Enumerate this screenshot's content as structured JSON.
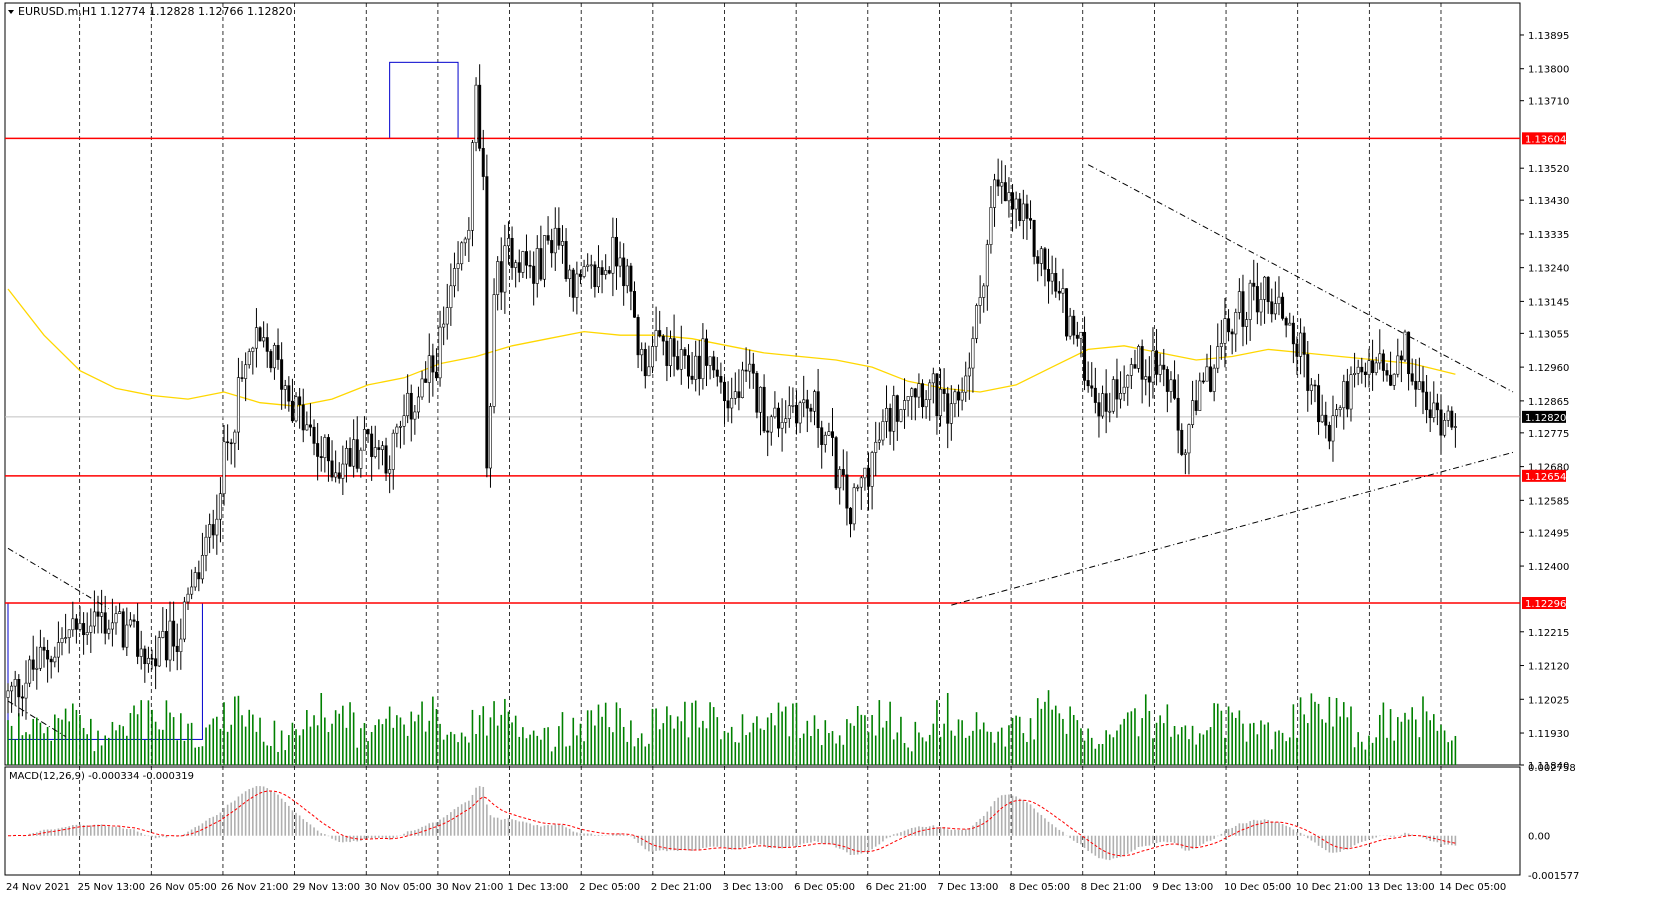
{
  "header": {
    "symbol": "EURUSD.m,H1",
    "ohlc": "1.12774 1.12828 1.12766 1.12820"
  },
  "chart_data": {
    "type": "candlestick",
    "symbol": "EURUSD.m",
    "timeframe": "H1",
    "ohlc_last": {
      "open": 1.12774,
      "high": 1.12828,
      "low": 1.12766,
      "close": 1.1282
    },
    "price_axis": {
      "ylim": [
        1.1184,
        1.13985
      ],
      "ticks": [
        "1.13895",
        "1.13800",
        "1.13710",
        "1.13520",
        "1.13430",
        "1.13335",
        "1.13240",
        "1.13145",
        "1.13055",
        "1.12960",
        "1.12865",
        "1.12775",
        "1.12680",
        "1.12585",
        "1.12495",
        "1.12400",
        "1.12215",
        "1.12120",
        "1.12025",
        "1.11930",
        "1.11840"
      ]
    },
    "time_axis": {
      "labels": [
        "24 Nov 2021",
        "25 Nov 13:00",
        "26 Nov 05:00",
        "26 Nov 21:00",
        "29 Nov 13:00",
        "30 Nov 05:00",
        "30 Nov 21:00",
        "1 Dec 13:00",
        "2 Dec 05:00",
        "2 Dec 21:00",
        "3 Dec 13:00",
        "6 Dec 05:00",
        "6 Dec 21:00",
        "7 Dec 13:00",
        "8 Dec 05:00",
        "8 Dec 21:00",
        "9 Dec 13:00",
        "10 Dec 05:00",
        "10 Dec 21:00",
        "13 Dec 13:00",
        "14 Dec 05:00"
      ]
    },
    "horizontal_levels": [
      {
        "price": 1.13604,
        "label": "1.13604",
        "color": "#ff0000"
      },
      {
        "price": 1.12654,
        "label": "1.12654",
        "color": "#ff0000"
      },
      {
        "price": 1.12296,
        "label": "1.12296",
        "color": "#ff0000"
      }
    ],
    "current_price": {
      "price": 1.1282,
      "label": "1.12820"
    },
    "close_path": [
      [
        0,
        1.1203
      ],
      [
        8,
        1.1212
      ],
      [
        16,
        1.122
      ],
      [
        24,
        1.1226
      ],
      [
        32,
        1.1222
      ],
      [
        40,
        1.1213
      ],
      [
        48,
        1.1222
      ],
      [
        56,
        1.1248
      ],
      [
        62,
        1.128
      ],
      [
        68,
        1.1302
      ],
      [
        74,
        1.1298
      ],
      [
        80,
        1.1284
      ],
      [
        86,
        1.1272
      ],
      [
        92,
        1.1268
      ],
      [
        100,
        1.1276
      ],
      [
        106,
        1.1271
      ],
      [
        112,
        1.1285
      ],
      [
        118,
        1.1295
      ],
      [
        124,
        1.1318
      ],
      [
        128,
        1.1338
      ],
      [
        130,
        1.1372
      ],
      [
        132,
        1.1345
      ],
      [
        133,
        1.1262
      ],
      [
        135,
        1.1318
      ],
      [
        140,
        1.133
      ],
      [
        146,
        1.1322
      ],
      [
        152,
        1.1335
      ],
      [
        158,
        1.1318
      ],
      [
        164,
        1.1322
      ],
      [
        170,
        1.133
      ],
      [
        176,
        1.1298
      ],
      [
        182,
        1.1302
      ],
      [
        188,
        1.1294
      ],
      [
        194,
        1.13
      ],
      [
        200,
        1.1286
      ],
      [
        206,
        1.1292
      ],
      [
        212,
        1.128
      ],
      [
        218,
        1.1286
      ],
      [
        224,
        1.1284
      ],
      [
        228,
        1.1274
      ],
      [
        234,
        1.1254
      ],
      [
        238,
        1.1266
      ],
      [
        244,
        1.128
      ],
      [
        250,
        1.1292
      ],
      [
        256,
        1.129
      ],
      [
        262,
        1.128
      ],
      [
        268,
        1.1302
      ],
      [
        274,
        1.1346
      ],
      [
        280,
        1.134
      ],
      [
        286,
        1.1328
      ],
      [
        292,
        1.1316
      ],
      [
        298,
        1.13
      ],
      [
        304,
        1.1284
      ],
      [
        310,
        1.1295
      ],
      [
        318,
        1.1298
      ],
      [
        322,
        1.1292
      ],
      [
        326,
        1.1272
      ],
      [
        330,
        1.1284
      ],
      [
        336,
        1.13
      ],
      [
        342,
        1.1312
      ],
      [
        348,
        1.1318
      ],
      [
        354,
        1.1312
      ],
      [
        360,
        1.1298
      ],
      [
        366,
        1.1276
      ],
      [
        372,
        1.129
      ],
      [
        376,
        1.1292
      ],
      [
        380,
        1.1298
      ],
      [
        384,
        1.129
      ],
      [
        388,
        1.13
      ],
      [
        392,
        1.1288
      ],
      [
        396,
        1.1282
      ],
      [
        402,
        1.1284
      ]
    ],
    "moving_average": [
      [
        0,
        1.1318
      ],
      [
        10,
        1.1305
      ],
      [
        20,
        1.1295
      ],
      [
        30,
        1.129
      ],
      [
        40,
        1.1288
      ],
      [
        50,
        1.1287
      ],
      [
        60,
        1.1289
      ],
      [
        70,
        1.1286
      ],
      [
        80,
        1.1285
      ],
      [
        90,
        1.1287
      ],
      [
        100,
        1.1291
      ],
      [
        110,
        1.1293
      ],
      [
        120,
        1.1297
      ],
      [
        130,
        1.1299
      ],
      [
        140,
        1.1302
      ],
      [
        150,
        1.1304
      ],
      [
        160,
        1.1306
      ],
      [
        170,
        1.1305
      ],
      [
        180,
        1.1305
      ],
      [
        190,
        1.1304
      ],
      [
        200,
        1.1302
      ],
      [
        210,
        1.13
      ],
      [
        220,
        1.1299
      ],
      [
        230,
        1.1298
      ],
      [
        240,
        1.1296
      ],
      [
        250,
        1.1292
      ],
      [
        260,
        1.129
      ],
      [
        270,
        1.1289
      ],
      [
        280,
        1.1291
      ],
      [
        290,
        1.1296
      ],
      [
        300,
        1.1301
      ],
      [
        310,
        1.1302
      ],
      [
        320,
        1.13
      ],
      [
        330,
        1.1298
      ],
      [
        340,
        1.1299
      ],
      [
        350,
        1.1301
      ],
      [
        360,
        1.13
      ],
      [
        370,
        1.1299
      ],
      [
        380,
        1.1298
      ],
      [
        390,
        1.1297
      ],
      [
        402,
        1.1294
      ]
    ],
    "trendlines": [
      {
        "name": "descending-resistance",
        "from": [
          300,
          1.1353
        ],
        "to": [
          418,
          1.1289
        ]
      },
      {
        "name": "ascending-support",
        "from": [
          262,
          1.1229
        ],
        "to": [
          418,
          1.1272
        ]
      },
      {
        "name": "early-descending",
        "from": [
          0,
          1.1245
        ],
        "to": [
          28,
          1.1228
        ]
      },
      {
        "name": "early-descending-lower",
        "from": [
          0,
          1.1202
        ],
        "to": [
          16,
          1.1192
        ]
      },
      {
        "name": "macd-bottom-line",
        "from": [
          0,
          -0.0
        ],
        "to": [
          30,
          0.0
        ]
      }
    ],
    "zones": [
      {
        "name": "top-box",
        "x": [
          106,
          125
        ],
        "price": [
          1.13604,
          1.13818
        ],
        "color": "#0000cc"
      },
      {
        "name": "bottom-box",
        "x": [
          0,
          54
        ],
        "price": [
          1.11912,
          1.12296
        ],
        "color": "#0000cc"
      }
    ],
    "volume": {
      "color": "#008000",
      "range": [
        0,
        60
      ]
    },
    "macd": {
      "label": "MACD(12,26,9) -0.000334 -0.000319",
      "ylim": [
        -0.001577,
        0.002758
      ],
      "ticks": [
        "0.002758",
        "0.00",
        "-0.001577"
      ],
      "histogram_color": "#b0b0b0",
      "signal_color": "#ff0000"
    },
    "colors": {
      "candle": "#000000",
      "moving_average": "#ffd700",
      "grid": "#000000",
      "level": "#ff0000",
      "volume": "#008000",
      "zone": "#0000cc"
    }
  }
}
